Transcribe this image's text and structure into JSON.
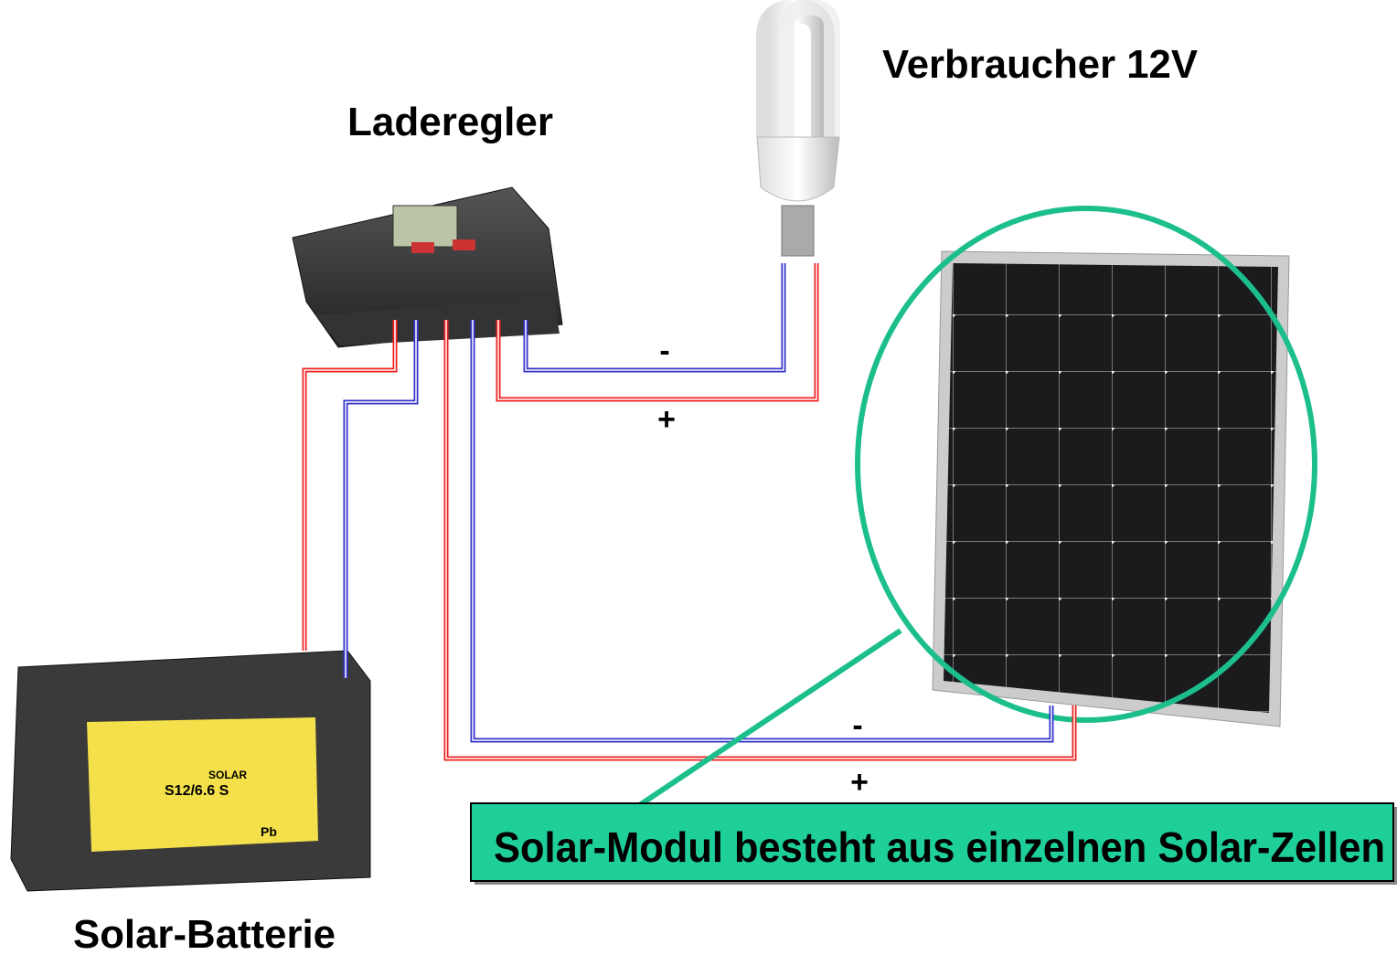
{
  "labels": {
    "load": "Verbraucher 12V",
    "controller": "Laderegler",
    "battery": "Solar-Batterie"
  },
  "wires": {
    "load_minus": "-",
    "load_plus": "+",
    "module_minus": "-",
    "module_plus": "+"
  },
  "callout": "Solar-Modul besteht aus einzelnen Solar-Zellen",
  "battery_label": {
    "brand": "SOLAR",
    "model": "S12/6.6 S",
    "chem": "Pb"
  }
}
